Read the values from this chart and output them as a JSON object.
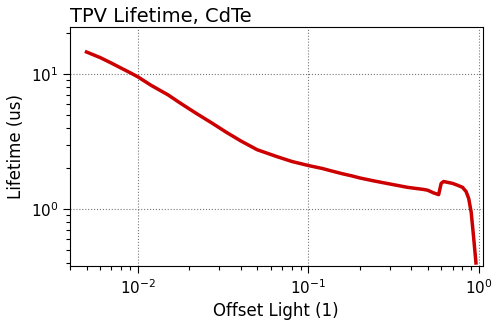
{
  "title": "TPV Lifetime, CdTe",
  "xlabel": "Offset Light (1)",
  "ylabel": "Lifetime (us)",
  "line_color": "#cc0000",
  "line_width": 2.5,
  "xlim": [
    0.004,
    1.05
  ],
  "ylim": [
    0.38,
    22
  ],
  "x": [
    0.005,
    0.006,
    0.007,
    0.008,
    0.009,
    0.01,
    0.012,
    0.015,
    0.018,
    0.022,
    0.027,
    0.033,
    0.04,
    0.05,
    0.065,
    0.08,
    0.1,
    0.12,
    0.14,
    0.16,
    0.18,
    0.2,
    0.24,
    0.28,
    0.33,
    0.38,
    0.43,
    0.47,
    0.5,
    0.52,
    0.54,
    0.56,
    0.58,
    0.6,
    0.62,
    0.65,
    0.7,
    0.75,
    0.8,
    0.84,
    0.87,
    0.9,
    0.93,
    0.96
  ],
  "y": [
    14.5,
    13.2,
    12.0,
    11.0,
    10.2,
    9.5,
    8.2,
    7.0,
    6.0,
    5.1,
    4.35,
    3.7,
    3.2,
    2.75,
    2.45,
    2.25,
    2.1,
    2.0,
    1.9,
    1.82,
    1.76,
    1.7,
    1.62,
    1.56,
    1.5,
    1.45,
    1.42,
    1.4,
    1.38,
    1.35,
    1.32,
    1.3,
    1.28,
    1.55,
    1.6,
    1.58,
    1.55,
    1.5,
    1.45,
    1.35,
    1.2,
    0.95,
    0.62,
    0.4
  ],
  "background_color": "#ffffff",
  "grid_color": "#555555",
  "title_fontsize": 14,
  "label_fontsize": 12,
  "tick_fontsize": 11
}
